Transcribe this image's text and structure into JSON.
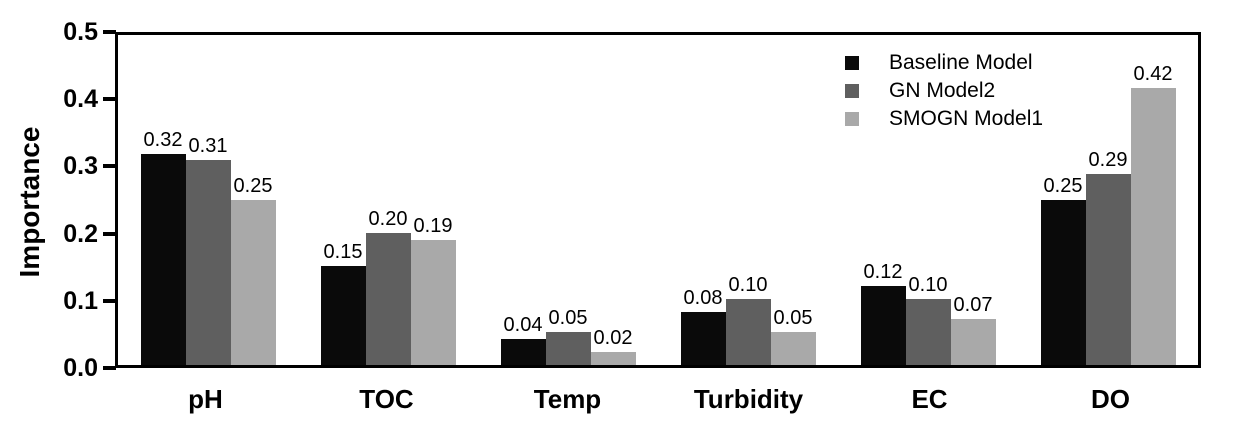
{
  "chart_data": {
    "type": "bar",
    "title": "",
    "xlabel": "",
    "ylabel": "Importance",
    "ylim": [
      0,
      0.5
    ],
    "ytick_labels": [
      "0.0",
      "0.1",
      "0.2",
      "0.3",
      "0.4",
      "0.5"
    ],
    "ytick_values": [
      0.0,
      0.1,
      0.2,
      0.3,
      0.4,
      0.5
    ],
    "grid": false,
    "frame": true,
    "legend_position": "top-right",
    "categories": [
      "pH",
      "TOC",
      "Temp",
      "Turbidity",
      "EC",
      "DO"
    ],
    "series": [
      {
        "name": "Baseline Model",
        "color": "#0a0a0a",
        "values": [
          0.32,
          0.15,
          0.04,
          0.08,
          0.12,
          0.25
        ],
        "labels": [
          "0.32",
          "0.15",
          "0.04",
          "0.08",
          "0.12",
          "0.25"
        ]
      },
      {
        "name": "GN Model2",
        "color": "#5f5f5f",
        "values": [
          0.31,
          0.2,
          0.05,
          0.1,
          0.1,
          0.29
        ],
        "labels": [
          "0.31",
          "0.20",
          "0.05",
          "0.10",
          "0.10",
          "0.29"
        ]
      },
      {
        "name": "SMOGN Model1",
        "color": "#a9a9a9",
        "values": [
          0.25,
          0.19,
          0.02,
          0.05,
          0.07,
          0.42
        ],
        "labels": [
          "0.25",
          "0.19",
          "0.02",
          "0.05",
          "0.07",
          "0.42"
        ]
      }
    ]
  },
  "colors": {
    "axis": "#000000",
    "background": "#ffffff",
    "text": "#000000"
  }
}
